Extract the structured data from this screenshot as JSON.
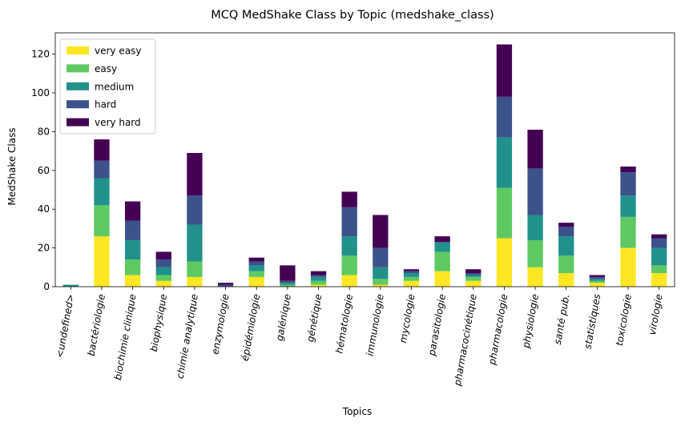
{
  "chart_data": {
    "type": "bar",
    "stacked": true,
    "title": "MCQ MedShake Class by Topic (medshake_class)",
    "xlabel": "Topics",
    "ylabel": "MedShake Class",
    "ylim": [
      0,
      131
    ],
    "yticks": [
      0,
      20,
      40,
      60,
      80,
      100,
      120
    ],
    "legend_position": "top-left",
    "categories": [
      "<undefined>",
      "bactériologie",
      "biochimie clinique",
      "biophysique",
      "chimie analytique",
      "enzymologie",
      "épidémiologie",
      "galénique",
      "génétique",
      "hématologie",
      "immunologie",
      "mycologie",
      "parasitologie",
      "pharmacocinétique",
      "pharmacologie",
      "physiologie",
      "santé pub.",
      "statistiques",
      "toxicologie",
      "virologie"
    ],
    "series": [
      {
        "name": "very easy",
        "color": "#fde725",
        "values": [
          0,
          26,
          6,
          3,
          5,
          0,
          5,
          0,
          1,
          6,
          1,
          3,
          8,
          3,
          25,
          10,
          7,
          2,
          20,
          7
        ]
      },
      {
        "name": "easy",
        "color": "#5ec962",
        "values": [
          0,
          16,
          8,
          3,
          8,
          0,
          3,
          1,
          2,
          10,
          3,
          2,
          10,
          2,
          26,
          14,
          9,
          1,
          16,
          4
        ]
      },
      {
        "name": "medium",
        "color": "#21918c",
        "values": [
          1,
          14,
          10,
          4,
          19,
          0,
          3,
          1,
          2,
          10,
          6,
          2,
          5,
          1,
          26,
          13,
          10,
          1,
          11,
          9
        ]
      },
      {
        "name": "hard",
        "color": "#3b528b",
        "values": [
          0,
          9,
          10,
          4,
          15,
          1,
          2,
          1,
          1,
          15,
          10,
          1,
          0,
          1,
          21,
          24,
          5,
          1,
          12,
          5
        ]
      },
      {
        "name": "very hard",
        "color": "#440154",
        "values": [
          0,
          11,
          10,
          4,
          22,
          1,
          2,
          8,
          2,
          8,
          17,
          1,
          3,
          2,
          27,
          20,
          2,
          1,
          3,
          2
        ]
      }
    ]
  }
}
